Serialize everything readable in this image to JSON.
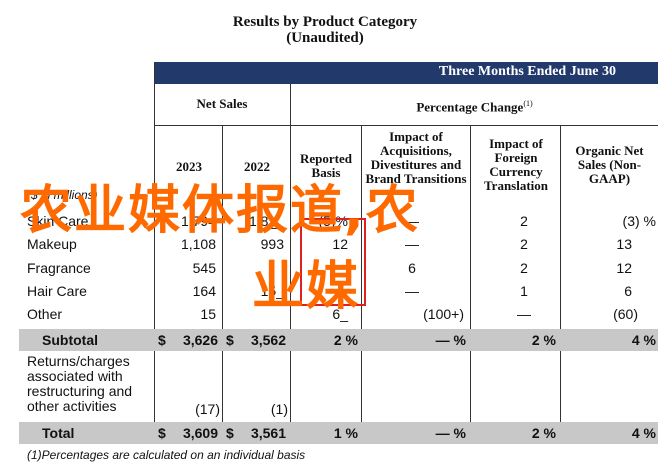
{
  "report": {
    "title": "Results by Product Category",
    "subtitle": "(Unaudited)",
    "period": "Three Months Ended June 30",
    "col_net_sales": "Net Sales",
    "col_pct_change": "Percentage Change",
    "col_pct_change_note": "(1)",
    "col_in_millions": "($ in millions)",
    "year_2023": "2023",
    "year_2022": "2022",
    "reported_basis": "Reported Basis",
    "impact_acq": "Impact of Acquisitions, Divestitures and Brand Transitions",
    "impact_fx": "Impact of Foreign Currency Translation",
    "organic": "Organic Net Sales (Non-GAAP)"
  },
  "rows": [
    {
      "label": "Skin Care",
      "v23": "1,794",
      "v22": "1,8__",
      "rep": "(5)%",
      "acq": "—",
      "fx": "2",
      "org": "(3) %"
    },
    {
      "label": "Makeup",
      "v23": "1,108",
      "v22": "993",
      "rep": "12",
      "acq": "—",
      "fx": "2",
      "org": "13"
    },
    {
      "label": "Fragrance",
      "v23": "545",
      "v22": "",
      "rep": "",
      "acq": "6",
      "fx": "2",
      "org": "12"
    },
    {
      "label": "Hair Care",
      "v23": "164",
      "v22": "15_",
      "rep": "",
      "acq": "—",
      "fx": "1",
      "org": "6"
    },
    {
      "label": "Other",
      "v23": "15",
      "v22": "",
      "rep": "6_",
      "acq": "(100+)",
      "fx": "—",
      "org": "(60)"
    }
  ],
  "subtotal": {
    "label": "Subtotal",
    "d23": "$",
    "v23": "3,626",
    "d22": "$",
    "v22": "3,562",
    "rep": "2 %",
    "acq": "— %",
    "fx": "2 %",
    "org": "4 %"
  },
  "returns": {
    "label": "Returns/charges associated with restructuring and other activities",
    "v23": "(17)",
    "v22": "(1)"
  },
  "total": {
    "label": "Total",
    "d23": "$",
    "v23": "3,609",
    "d22": "$",
    "v22": "3,561",
    "rep": "1 %",
    "acq": "— %",
    "fx": "2 %",
    "org": "4 %"
  },
  "footnote": "(1)Percentages are calculated on an individual basis",
  "watermark": {
    "line1": "农业媒体报道,农",
    "line2": "业媒"
  }
}
